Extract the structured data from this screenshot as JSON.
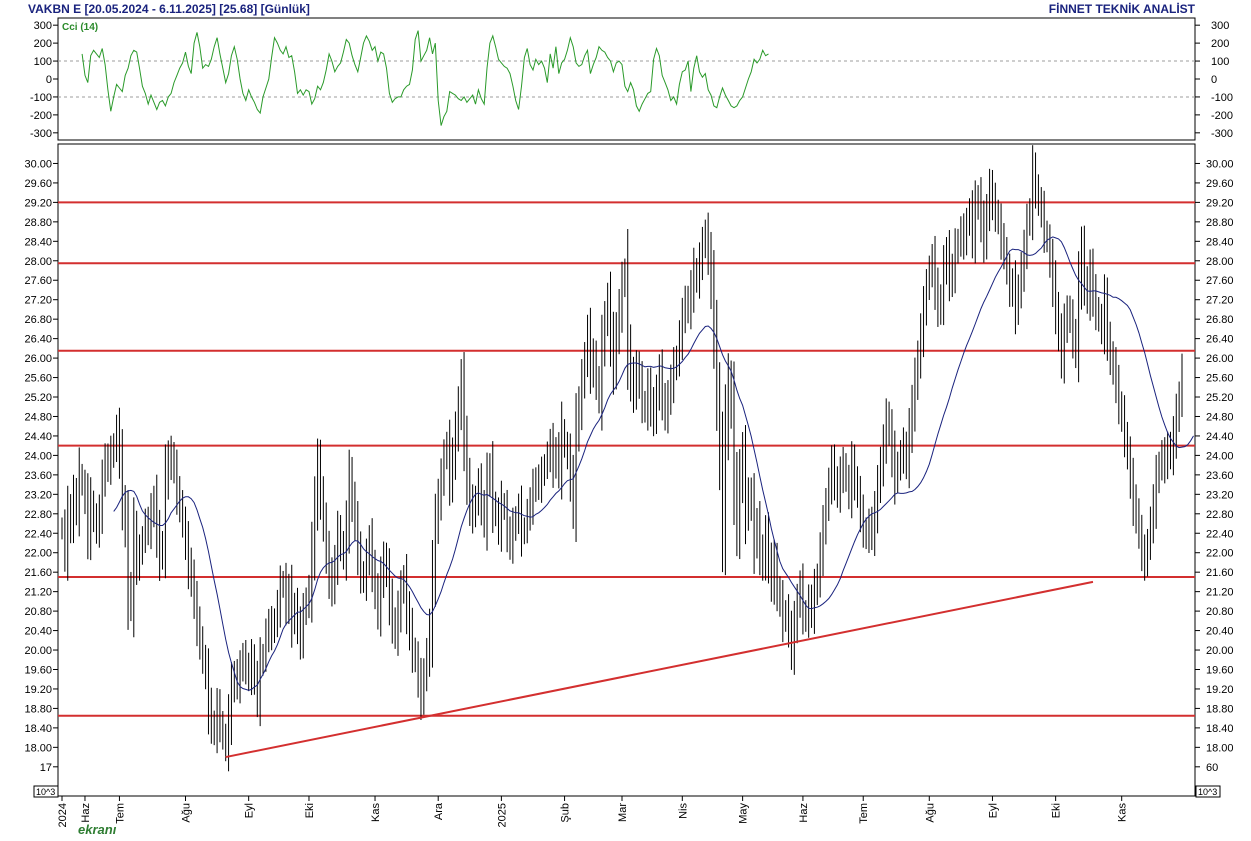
{
  "header": {
    "title": "VAKBN E  [20.05.2024 - 6.11.2025]  [25.68]  [Günlük]",
    "brand": "FİNNET TEKNİK ANALİST"
  },
  "cci_label": "Cci (14)",
  "scale_label": "10^3",
  "logo_text": "ekranı",
  "chart_data": [
    {
      "type": "line",
      "name": "cci",
      "title": "Cci (14)",
      "ylim": [
        -340,
        340
      ],
      "yticks": [
        300,
        200,
        100,
        0,
        -100,
        -200,
        -300
      ],
      "ytick_labels": [
        "300",
        "200",
        "100",
        "0",
        "-100",
        "-200",
        "-300"
      ],
      "grid_lines": [
        100,
        -100
      ],
      "color": "#2a9a2a",
      "x_index_start": 7,
      "values": [
        140,
        20,
        -20,
        130,
        160,
        140,
        120,
        170,
        80,
        -60,
        -180,
        -100,
        -30,
        -50,
        -70,
        20,
        60,
        130,
        160,
        150,
        60,
        -40,
        -80,
        -140,
        -90,
        -130,
        -170,
        -130,
        -120,
        -150,
        -100,
        -80,
        -20,
        20,
        60,
        90,
        150,
        70,
        30,
        200,
        260,
        180,
        60,
        80,
        70,
        110,
        180,
        230,
        140,
        60,
        -20,
        30,
        130,
        180,
        110,
        0,
        -80,
        -120,
        -60,
        -100,
        -130,
        -170,
        -190,
        -100,
        -50,
        0,
        120,
        230,
        200,
        160,
        140,
        180,
        120,
        130,
        40,
        -80,
        -60,
        -90,
        -60,
        -70,
        -140,
        -110,
        -40,
        -60,
        -20,
        50,
        140,
        100,
        40,
        70,
        90,
        150,
        220,
        200,
        130,
        80,
        40,
        120,
        200,
        240,
        210,
        160,
        180,
        100,
        150,
        140,
        60,
        -80,
        -130,
        -110,
        -100,
        -100,
        -60,
        -40,
        -30,
        50,
        220,
        270,
        100,
        130,
        160,
        230,
        140,
        200,
        -120,
        -260,
        -210,
        -180,
        -70,
        -80,
        -90,
        -110,
        -120,
        -100,
        -130,
        -110,
        -90,
        -140,
        -60,
        -110,
        -140,
        60,
        200,
        240,
        180,
        110,
        90,
        70,
        60,
        30,
        -40,
        -120,
        -170,
        -40,
        120,
        170,
        80,
        50,
        110,
        80,
        100,
        60,
        -20,
        140,
        60,
        180,
        30,
        90,
        110,
        160,
        230,
        180,
        90,
        70,
        80,
        130,
        160,
        30,
        80,
        120,
        180,
        160,
        150,
        120,
        100,
        40,
        90,
        100,
        80,
        -40,
        -70,
        -20,
        -60,
        -150,
        -180,
        -140,
        -110,
        -80,
        -70,
        110,
        170,
        130,
        20,
        -20,
        -60,
        -120,
        -100,
        -140,
        -30,
        40,
        50,
        100,
        -70,
        60,
        130,
        40,
        10,
        30,
        -60,
        -90,
        -150,
        -160,
        -100,
        -50,
        -90,
        -120,
        -150,
        -160,
        -150,
        -120,
        -100,
        -50,
        0,
        40,
        110,
        90,
        110,
        160,
        130,
        140
      ]
    },
    {
      "type": "candlestick",
      "name": "price",
      "ylim": [
        17.0,
        30.4
      ],
      "yticks": [
        30.0,
        29.6,
        29.2,
        28.8,
        28.4,
        28.0,
        27.6,
        27.2,
        26.8,
        26.4,
        26.0,
        25.6,
        25.2,
        24.8,
        24.4,
        24.0,
        23.6,
        23.2,
        22.8,
        22.4,
        22.0,
        21.6,
        21.2,
        20.8,
        20.4,
        20.0,
        19.6,
        19.2,
        18.8,
        18.4,
        18.0,
        17.6
      ],
      "ytick_labels": [
        "30.00",
        "29.60",
        "29.20",
        "28.80",
        "28.40",
        "28.00",
        "27.60",
        "27.20",
        "26.80",
        "26.40",
        "26.00",
        "25.60",
        "25.20",
        "24.80",
        "24.40",
        "24.00",
        "23.60",
        "23.20",
        "22.80",
        "22.40",
        "22.00",
        "21.60",
        "21.20",
        "20.80",
        "20.40",
        "20.00",
        "19.60",
        "19.20",
        "18.80",
        "18.40",
        "18.00",
        "17.60"
      ],
      "ytick_labels_left": [
        "30.00",
        "29.60",
        "29.20",
        "28.80",
        "28.40",
        "28.00",
        "27.60",
        "27.20",
        "26.80",
        "26.40",
        "26.00",
        "25.60",
        "25.20",
        "24.80",
        "24.40",
        "24.00",
        "23.60",
        "23.20",
        "22.80",
        "22.40",
        "22.00",
        "21.60",
        "21.20",
        "20.80",
        "20.40",
        "20.00",
        "19.60",
        "19.20",
        "18.80",
        "18.40",
        "18.00",
        "17"
      ],
      "ytick_labels_right": [
        "30.00",
        "29.60",
        "29.20",
        "28.80",
        "28.40",
        "28.00",
        "27.60",
        "27.20",
        "26.80",
        "26.40",
        "26.00",
        "25.60",
        "25.20",
        "24.80",
        "24.40",
        "24.00",
        "23.60",
        "23.20",
        "22.80",
        "22.40",
        "22.00",
        "21.60",
        "21.20",
        "20.80",
        "20.40",
        "20.00",
        "19.60",
        "19.20",
        "18.80",
        "18.40",
        "18.00",
        "60"
      ],
      "x_labels": [
        {
          "label": "2024",
          "index": 0
        },
        {
          "label": "Haz",
          "index": 8
        },
        {
          "label": "Tem",
          "index": 20
        },
        {
          "label": "Ağu",
          "index": 43
        },
        {
          "label": "Eyl",
          "index": 65
        },
        {
          "label": "Eki",
          "index": 86
        },
        {
          "label": "Kas",
          "index": 109
        },
        {
          "label": "Ara",
          "index": 131
        },
        {
          "label": "2025",
          "index": 153
        },
        {
          "label": "Şub",
          "index": 175
        },
        {
          "label": "Mar",
          "index": 195
        },
        {
          "label": "Nis",
          "index": 216
        },
        {
          "label": "May",
          "index": 237
        },
        {
          "label": "Haz",
          "index": 258
        },
        {
          "label": "Tem",
          "index": 279
        },
        {
          "label": "Ağu",
          "index": 302
        },
        {
          "label": "Eyl",
          "index": 324
        },
        {
          "label": "Eki",
          "index": 346
        },
        {
          "label": "Kas",
          "index": 369
        }
      ],
      "horizontal_levels": [
        29.2,
        27.95,
        26.15,
        24.2,
        21.5,
        18.65
      ],
      "trendline": [
        {
          "index": 57,
          "value": 17.8
        },
        {
          "index": 359,
          "value": 21.4
        }
      ],
      "ma_color": "#1a237e",
      "level_color": "#d32f2f",
      "closes": [
        22.5,
        22.0,
        22.8,
        22.6,
        23.2,
        22.9,
        23.6,
        23.4,
        23.1,
        22.4,
        23.0,
        22.7,
        22.5,
        22.8,
        23.5,
        23.9,
        23.8,
        24.0,
        24.2,
        24.5,
        24.0,
        23.0,
        22.5,
        21.2,
        21.0,
        22.4,
        21.8,
        22.0,
        22.3,
        22.6,
        22.5,
        22.8,
        23.1,
        22.4,
        21.9,
        22.2,
        23.5,
        23.9,
        24.0,
        23.7,
        23.2,
        23.0,
        22.6,
        22.2,
        21.7,
        21.5,
        21.0,
        20.5,
        20.2,
        19.8,
        19.5,
        18.8,
        18.5,
        18.3,
        18.8,
        18.5,
        18.2,
        18.0,
        18.6,
        19.2,
        19.5,
        19.3,
        19.6,
        19.9,
        19.6,
        19.5,
        19.8,
        19.4,
        19.0,
        19.7,
        19.9,
        20.3,
        20.5,
        20.4,
        20.6,
        20.9,
        21.3,
        21.4,
        20.9,
        21.2,
        20.6,
        20.9,
        20.5,
        20.2,
        20.8,
        21.0,
        21.2,
        22.0,
        23.0,
        23.8,
        23.2,
        22.6,
        22.0,
        21.5,
        21.3,
        21.8,
        22.4,
        22.2,
        21.9,
        22.6,
        23.5,
        23.1,
        22.6,
        22.0,
        21.6,
        21.4,
        21.9,
        22.2,
        21.7,
        21.2,
        20.8,
        21.4,
        21.9,
        21.6,
        21.0,
        20.6,
        20.3,
        20.8,
        21.2,
        21.5,
        20.8,
        20.4,
        20.0,
        19.8,
        19.4,
        19.0,
        19.5,
        19.9,
        20.4,
        21.5,
        22.6,
        23.1,
        23.5,
        24.0,
        24.2,
        23.5,
        23.9,
        24.5,
        25.0,
        25.5,
        24.3,
        23.5,
        23.0,
        22.8,
        23.1,
        23.4,
        23.0,
        22.6,
        23.5,
        23.7,
        23.0,
        22.8,
        22.5,
        23.0,
        22.9,
        22.4,
        22.2,
        22.5,
        22.7,
        22.9,
        22.4,
        22.5,
        22.8,
        23.0,
        23.3,
        23.5,
        23.4,
        23.6,
        23.8,
        24.0,
        24.2,
        23.8,
        24.1,
        23.7,
        24.5,
        24.2,
        24.0,
        23.5,
        23.0,
        24.5,
        25.0,
        25.5,
        26.0,
        26.5,
        25.8,
        26.0,
        25.5,
        25.2,
        26.2,
        26.8,
        27.2,
        26.4,
        25.8,
        26.5,
        27.0,
        27.5,
        27.8,
        26.2,
        25.6,
        25.3,
        25.8,
        25.5,
        25.1,
        24.9,
        25.4,
        25.0,
        24.8,
        25.3,
        25.7,
        25.2,
        24.8,
        25.2,
        25.5,
        25.8,
        26.0,
        26.4,
        26.8,
        27.2,
        27.0,
        27.4,
        27.8,
        27.6,
        28.0,
        28.3,
        28.6,
        28.1,
        27.5,
        26.5,
        25.2,
        24.0,
        22.5,
        24.5,
        25.5,
        25.0,
        23.5,
        22.5,
        23.5,
        24.0,
        22.8,
        23.2,
        23.0,
        22.2,
        22.6,
        22.0,
        21.8,
        22.4,
        21.8,
        21.4,
        21.8,
        21.2,
        21.0,
        20.6,
        20.8,
        20.4,
        20.0,
        20.5,
        21.0,
        21.3,
        20.8,
        20.6,
        21.0,
        20.8,
        21.2,
        21.5,
        22.0,
        22.5,
        23.0,
        23.4,
        23.8,
        23.5,
        23.2,
        23.6,
        23.8,
        23.5,
        23.2,
        23.8,
        23.5,
        23.2,
        22.8,
        22.5,
        22.3,
        22.6,
        22.4,
        22.8,
        23.4,
        23.8,
        24.2,
        24.8,
        24.5,
        24.0,
        23.5,
        23.8,
        24.0,
        24.2,
        23.8,
        24.5,
        25.0,
        25.5,
        26.0,
        26.5,
        27.0,
        27.5,
        27.8,
        28.0,
        27.5,
        27.0,
        27.2,
        27.8,
        28.2,
        27.6,
        27.8,
        28.2,
        28.4,
        28.6,
        28.4,
        28.8,
        29.0,
        28.5,
        29.1,
        29.3,
        28.8,
        28.4,
        29.0,
        29.5,
        29.2,
        29.0,
        28.8,
        28.4,
        28.2,
        27.8,
        27.4,
        27.5,
        27.0,
        27.4,
        27.8,
        28.2,
        28.8,
        29.0,
        29.8,
        29.5,
        29.2,
        29.0,
        28.6,
        28.4,
        28.0,
        27.5,
        27.0,
        26.5,
        26.0,
        26.6,
        27.0,
        26.8,
        26.4,
        26.2,
        27.5,
        28.2,
        27.6,
        27.2,
        27.8,
        27.3,
        27.0,
        26.8,
        26.6,
        27.2,
        26.4,
        26.0,
        25.8,
        25.5,
        25.0,
        24.8,
        24.4,
        24.0,
        23.5,
        23.0,
        22.8,
        22.4,
        22.0,
        21.8,
        22.2,
        22.6,
        23.0,
        23.5,
        23.8,
        24.0,
        23.8,
        24.2,
        24.0,
        24.4,
        24.8,
        25.2,
        25.68
      ],
      "ma_values": [
        null,
        null,
        null,
        null,
        null,
        null,
        null,
        null,
        null,
        null,
        null,
        null,
        null,
        null,
        null,
        null,
        null,
        null,
        22.85,
        22.93,
        23.04,
        23.16,
        23.24,
        23.27,
        23.28,
        23.26,
        23.16,
        23.0,
        22.86,
        22.78,
        22.72,
        22.67,
        22.62,
        22.59,
        22.56,
        22.56,
        22.61,
        22.7,
        22.82,
        22.9,
        22.98,
        23.06,
        23.12,
        23.15,
        23.15,
        23.11,
        23.03,
        22.88,
        22.7,
        22.52,
        22.29,
        22.02,
        21.73,
        21.43,
        21.15,
        20.85,
        20.53,
        20.22,
        19.95,
        19.74,
        19.54,
        19.35,
        19.25,
        19.21,
        19.19,
        19.17,
        19.19,
        19.24,
        19.28,
        19.4,
        19.5,
        19.62,
        19.76,
        19.88,
        19.98,
        20.11,
        20.27,
        20.43,
        20.53,
        20.6,
        20.66,
        20.72,
        20.78,
        20.78,
        20.83,
        20.89,
        20.95,
        21.06,
        21.24,
        21.45,
        21.6,
        21.69,
        21.75,
        21.79,
        21.8,
        21.84,
        21.91,
        21.96,
        21.98,
        22.02,
        22.12,
        22.2,
        22.25,
        22.24,
        22.17,
        22.08,
        22.02,
        21.98,
        21.92,
        21.88,
        21.84,
        21.82,
        21.78,
        21.71,
        21.64,
        21.58,
        21.52,
        21.48,
        21.47,
        21.45,
        21.38,
        21.3,
        21.2,
        21.09,
        20.98,
        20.87,
        20.79,
        20.73,
        20.72,
        20.79,
        20.91,
        21.05,
        21.2,
        21.38,
        21.55,
        21.7,
        21.87,
        22.07,
        22.3,
        22.53,
        22.71,
        22.87,
        23.01,
        23.12,
        23.2,
        23.23,
        23.2,
        23.18,
        23.2,
        23.16,
        23.12,
        23.08,
        23.03,
        23.0,
        22.96,
        22.91,
        22.86,
        22.84,
        22.82,
        22.82,
        22.79,
        22.76,
        22.75,
        22.73,
        22.74,
        22.79,
        22.82,
        22.87,
        22.93,
        22.99,
        23.08,
        23.15,
        23.22,
        23.27,
        23.34,
        23.42,
        23.48,
        23.5,
        23.52,
        23.65,
        23.78,
        23.93,
        24.1,
        24.28,
        24.41,
        24.54,
        24.64,
        24.72,
        24.84,
        24.98,
        25.14,
        25.26,
        25.34,
        25.42,
        25.52,
        25.65,
        25.79,
        25.87,
        25.89,
        25.9,
        25.9,
        25.88,
        25.85,
        25.82,
        25.83,
        25.83,
        25.81,
        25.82,
        25.84,
        25.83,
        25.8,
        25.79,
        25.78,
        25.79,
        25.82,
        25.87,
        25.93,
        26.01,
        26.08,
        26.18,
        26.3,
        26.41,
        26.51,
        26.58,
        26.65,
        26.66,
        26.61,
        26.53,
        26.4,
        26.24,
        26.07,
        25.94,
        25.84,
        25.73,
        25.55,
        25.34,
        25.17,
        25.03,
        24.82,
        24.61,
        24.39,
        24.12,
        23.85,
        23.57,
        23.29,
        23.04,
        22.78,
        22.5,
        22.26,
        22.03,
        21.82,
        21.67,
        21.58,
        21.49,
        21.39,
        21.3,
        21.21,
        21.12,
        21.02,
        20.92,
        20.86,
        20.85,
        20.87,
        20.88,
        20.91,
        20.95,
        21.0,
        21.06,
        21.14,
        21.24,
        21.34,
        21.47,
        21.63,
        21.78,
        21.93,
        22.08,
        22.23,
        22.37,
        22.49,
        22.6,
        22.69,
        22.75,
        22.8,
        22.82,
        22.85,
        22.89,
        22.95,
        23.01,
        23.07,
        23.13,
        23.2,
        23.23,
        23.22,
        23.22,
        23.23,
        23.25,
        23.26,
        23.3,
        23.36,
        23.44,
        23.54,
        23.67,
        23.82,
        24.02,
        24.23,
        24.44,
        24.63,
        24.82,
        24.99,
        25.18,
        25.39,
        25.57,
        25.76,
        25.93,
        26.1,
        26.26,
        26.4,
        26.55,
        26.7,
        26.86,
        27.02,
        27.15,
        27.27,
        27.4,
        27.53,
        27.66,
        27.77,
        27.87,
        27.98,
        28.09,
        28.2,
        28.24,
        28.23,
        28.23,
        28.2,
        28.17,
        28.12,
        28.11,
        28.12,
        28.15,
        28.21,
        28.26,
        28.35,
        28.42,
        28.46,
        28.49,
        28.47,
        28.45,
        28.39,
        28.27,
        28.13,
        27.97,
        27.83,
        27.7,
        27.6,
        27.53,
        27.45,
        27.38,
        27.37,
        27.38,
        27.38,
        27.36,
        27.34,
        27.33,
        27.31,
        27.29,
        27.25,
        27.25,
        27.22,
        27.18,
        27.13,
        27.08,
        26.99,
        26.84,
        26.69,
        26.52,
        26.31,
        26.11,
        25.88,
        25.64,
        25.42,
        25.2,
        24.99,
        24.79,
        24.62,
        24.47,
        24.35,
        24.27,
        24.19,
        24.16,
        24.17,
        24.18,
        24.22,
        24.3,
        24.4
      ]
    }
  ]
}
